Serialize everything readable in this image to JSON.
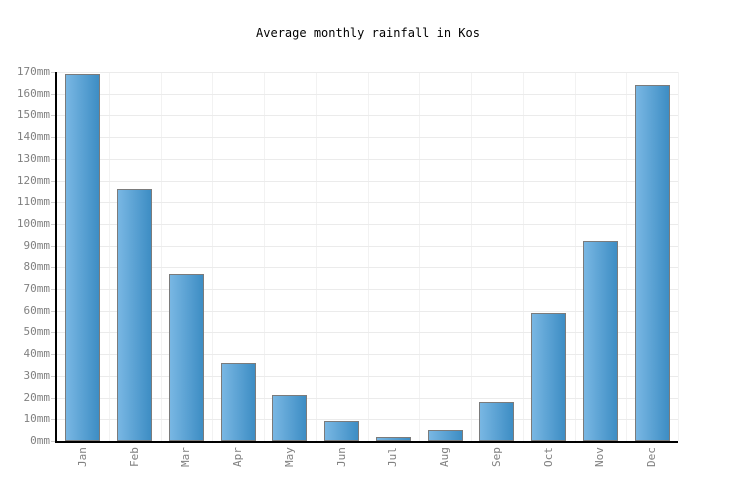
{
  "chart_data": {
    "type": "bar",
    "title": "Average monthly rainfall in Kos",
    "categories": [
      "Jan",
      "Feb",
      "Mar",
      "Apr",
      "May",
      "Jun",
      "Jul",
      "Aug",
      "Sep",
      "Oct",
      "Nov",
      "Dec"
    ],
    "values": [
      169,
      116,
      77,
      36,
      21,
      9,
      2,
      5,
      18,
      59,
      92,
      164
    ],
    "unit": "mm",
    "xlabel": "",
    "ylabel": "",
    "ylim": [
      0,
      170
    ],
    "ytick_step": 10,
    "ytick_suffix": "mm",
    "grid": true,
    "legend": "none",
    "colors": {
      "bar_gradient_left": "#79b7e3",
      "bar_gradient_right": "#3d8dc4",
      "bar_border": "#7b7b7b",
      "axis": "#000000",
      "gridline_h": "#ebebeb",
      "gridline_v": "#f2f2f2",
      "tick": "#cccccc",
      "tick_label": "#808080",
      "title": "#000000",
      "background": "#ffffff"
    }
  }
}
